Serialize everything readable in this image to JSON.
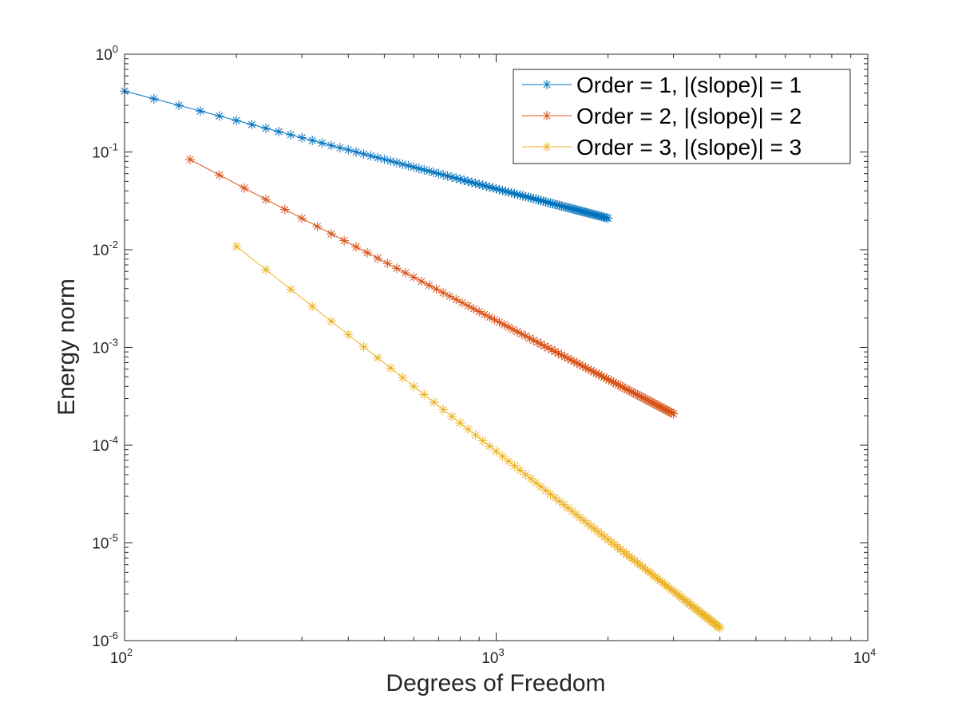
{
  "chart_data": {
    "type": "line",
    "xlabel": "Degrees of Freedom",
    "ylabel": "Energy norm",
    "xscale": "log",
    "yscale": "log",
    "xlim": [
      100,
      10000
    ],
    "ylim": [
      1e-06,
      1
    ],
    "grid": false,
    "legend_position": "top-right",
    "x_ticks": [
      {
        "base": "10",
        "exp": "2",
        "value": 100
      },
      {
        "base": "10",
        "exp": "3",
        "value": 1000
      },
      {
        "base": "10",
        "exp": "4",
        "value": 10000
      }
    ],
    "y_ticks": [
      {
        "base": "10",
        "exp": "-6",
        "value": 1e-06
      },
      {
        "base": "10",
        "exp": "-5",
        "value": 1e-05
      },
      {
        "base": "10",
        "exp": "-4",
        "value": 0.0001
      },
      {
        "base": "10",
        "exp": "-3",
        "value": 0.001
      },
      {
        "base": "10",
        "exp": "-2",
        "value": 0.01
      },
      {
        "base": "10",
        "exp": "-1",
        "value": 0.1
      },
      {
        "base": "10",
        "exp": "0",
        "value": 1
      }
    ],
    "series": [
      {
        "name": "Order = 1, |(slope)| = 1",
        "color": "#0072bd",
        "marker": "asterisk",
        "x": [
          100,
          120,
          140,
          160,
          180,
          200,
          220,
          240,
          260,
          280,
          300,
          320,
          340,
          360,
          380,
          400,
          420,
          440,
          460,
          480,
          500,
          520,
          540,
          560,
          580,
          600,
          620,
          640,
          660,
          680,
          700,
          720,
          740,
          760,
          780,
          800,
          820,
          840,
          860,
          880,
          900,
          920,
          940,
          960,
          980,
          1000,
          1020,
          1040,
          1060,
          1080,
          1100,
          1120,
          1140,
          1160,
          1180,
          1200,
          1220,
          1240,
          1260,
          1280,
          1300,
          1320,
          1340,
          1360,
          1380,
          1400,
          1420,
          1440,
          1460,
          1480,
          1500,
          1520,
          1540,
          1560,
          1580,
          1600,
          1620,
          1640,
          1660,
          1680,
          1700,
          1720,
          1740,
          1760,
          1780,
          1800,
          1820,
          1840,
          1860,
          1880,
          1900,
          1920,
          1940,
          1960,
          1980,
          2000
        ],
        "y": [
          0.42,
          0.35,
          0.3,
          0.2625,
          0.2333,
          0.21,
          0.1909,
          0.175,
          0.1615,
          0.15,
          0.14,
          0.1313,
          0.1235,
          0.1167,
          0.1105,
          0.105,
          0.1,
          0.09545,
          0.0913,
          0.0875,
          0.084,
          0.08077,
          0.07778,
          0.075,
          0.07241,
          0.07,
          0.06774,
          0.06563,
          0.06364,
          0.06176,
          0.06,
          0.05833,
          0.05676,
          0.05526,
          0.05385,
          0.0525,
          0.05122,
          0.05,
          0.04884,
          0.04773,
          0.04667,
          0.04565,
          0.04468,
          0.04375,
          0.04286,
          0.042,
          0.04118,
          0.04038,
          0.03962,
          0.03889,
          0.03818,
          0.0375,
          0.03684,
          0.03621,
          0.03559,
          0.035,
          0.03443,
          0.03387,
          0.03333,
          0.03281,
          0.03231,
          0.03182,
          0.03134,
          0.03088,
          0.03043,
          0.03,
          0.02958,
          0.02917,
          0.02877,
          0.02838,
          0.028,
          0.02763,
          0.02727,
          0.02692,
          0.02658,
          0.02625,
          0.02593,
          0.02561,
          0.0253,
          0.025,
          0.02471,
          0.02442,
          0.02414,
          0.02386,
          0.0236,
          0.02333,
          0.02308,
          0.02283,
          0.02258,
          0.02234,
          0.02211,
          0.02188,
          0.02165,
          0.02143,
          0.02121,
          0.021
        ]
      },
      {
        "name": "Order = 2, |(slope)| = 2",
        "color": "#d95319",
        "marker": "asterisk",
        "x": [
          150,
          180,
          210,
          240,
          270,
          300,
          330,
          360,
          390,
          420,
          450,
          480,
          510,
          540,
          570,
          600,
          630,
          660,
          690,
          720,
          750,
          780,
          810,
          840,
          870,
          900,
          930,
          960,
          990,
          1020,
          1050,
          1080,
          1110,
          1140,
          1170,
          1200,
          1230,
          1260,
          1290,
          1320,
          1350,
          1380,
          1410,
          1440,
          1470,
          1500,
          1530,
          1560,
          1590,
          1620,
          1650,
          1680,
          1710,
          1740,
          1770,
          1800,
          1830,
          1860,
          1890,
          1920,
          1950,
          1980,
          2010,
          2040,
          2070,
          2100,
          2130,
          2160,
          2190,
          2220,
          2250,
          2280,
          2310,
          2340,
          2370,
          2400,
          2430,
          2460,
          2490,
          2520,
          2550,
          2580,
          2610,
          2640,
          2670,
          2700,
          2730,
          2760,
          2790,
          2820,
          2850,
          2880,
          2910,
          2940,
          2970,
          3000
        ],
        "y": [
          0.0837,
          0.05813,
          0.04271,
          0.0327,
          0.02584,
          0.02093,
          0.0173,
          0.01453,
          0.01238,
          0.01068,
          0.0093,
          0.008174,
          0.00724,
          0.006458,
          0.005796,
          0.005231,
          0.004745,
          0.004324,
          0.003955,
          0.003633,
          0.003348,
          0.003096,
          0.00287,
          0.002669,
          0.002488,
          0.002325,
          0.002177,
          0.002043,
          0.001921,
          0.00181,
          0.001708,
          0.001615,
          0.001528,
          0.001449,
          0.001375,
          0.001308,
          0.001244,
          0.001186,
          0.001132,
          0.001081,
          0.001033,
          0.0009887,
          0.000947,
          0.0009081,
          0.0008713,
          0.000837,
          0.0008045,
          0.0007738,
          0.0007449,
          0.0007176,
          0.0006917,
          0.0006672,
          0.0006441,
          0.0006221,
          0.0006012,
          0.0005813,
          0.0005624,
          0.0005444,
          0.0005273,
          0.0005109,
          0.0004953,
          0.0004804,
          0.0004662,
          0.0004526,
          0.0004395,
          0.0004271,
          0.0004151,
          0.0004036,
          0.0003926,
          0.0003821,
          0.000372,
          0.0003622,
          0.0003528,
          0.0003438,
          0.0003352,
          0.000327,
          0.0003189,
          0.0003112,
          0.0003037,
          0.0002966,
          0.0002896,
          0.000283,
          0.0002765,
          0.0002702,
          0.0002641,
          0.0002583,
          0.0002527,
          0.0002472,
          0.0002419,
          0.0002367,
          0.0002318,
          0.000227,
          0.0002223,
          0.0002178,
          0.0002135,
          0.0002093
        ]
      },
      {
        "name": "Order = 3, |(slope)| = 3",
        "color": "#edb120",
        "marker": "asterisk",
        "x": [
          200,
          240,
          280,
          320,
          360,
          400,
          440,
          480,
          520,
          560,
          600,
          640,
          680,
          720,
          760,
          800,
          840,
          880,
          920,
          960,
          1000,
          1040,
          1080,
          1120,
          1160,
          1200,
          1240,
          1280,
          1320,
          1360,
          1400,
          1440,
          1480,
          1520,
          1560,
          1600,
          1640,
          1680,
          1720,
          1760,
          1800,
          1840,
          1880,
          1920,
          1960,
          2000,
          2040,
          2080,
          2120,
          2160,
          2200,
          2240,
          2280,
          2320,
          2360,
          2400,
          2440,
          2480,
          2520,
          2560,
          2600,
          2640,
          2680,
          2720,
          2760,
          2800,
          2840,
          2880,
          2920,
          2960,
          3000,
          3040,
          3080,
          3120,
          3160,
          3200,
          3240,
          3280,
          3320,
          3360,
          3400,
          3440,
          3480,
          3520,
          3560,
          3600,
          3640,
          3680,
          3720,
          3760,
          3800,
          3840,
          3880,
          3920,
          3960,
          4000
        ],
        "y": [
          0.0108,
          0.00625,
          0.003936,
          0.002637,
          0.001852,
          0.00135,
          0.001014,
          0.0007813,
          0.0006145,
          0.000492,
          0.0004,
          0.0003296,
          0.0002748,
          0.0002315,
          0.0001968,
          0.0001688,
          0.0001458,
          0.0001268,
          0.000111,
          9.766e-05,
          8.64e-05,
          7.681e-05,
          6.859e-05,
          6.15e-05,
          5.535e-05,
          5e-05,
          4.531e-05,
          4.12e-05,
          3.757e-05,
          3.435e-05,
          3.149e-05,
          2.894e-05,
          2.665e-05,
          2.46e-05,
          2.275e-05,
          2.109e-05,
          1.958e-05,
          1.822e-05,
          1.698e-05,
          1.585e-05,
          1.481e-05,
          1.387e-05,
          1.3e-05,
          1.221e-05,
          1.148e-05,
          1.08e-05,
          1.018e-05,
          9.601e-06,
          9.068e-06,
          8.573e-06,
          8.115e-06,
          7.688e-06,
          7.291e-06,
          6.922e-06,
          6.577e-06,
          6.25e-06,
          5.948e-06,
          5.664e-06,
          5.397e-06,
          5.149e-06,
          4.916e-06,
          4.696e-06,
          4.489e-06,
          4.293e-06,
          4.109e-06,
          3.936e-06,
          3.772e-06,
          3.617e-06,
          3.471e-06,
          3.333e-06,
          3.2e-06,
          3.075e-06,
          2.957e-06,
          2.844e-06,
          2.737e-06,
          2.637e-06,
          2.54e-06,
          2.448e-06,
          2.361e-06,
          2.277e-06,
          2.198e-06,
          2.122e-06,
          2.05e-06,
          1.98e-06,
          1.914e-06,
          1.852e-06,
          1.791e-06,
          1.734e-06,
          1.679e-06,
          1.626e-06,
          1.575e-06,
          1.526e-06,
          1.479e-06,
          1.434e-06,
          1.391e-06,
          1.35e-06
        ]
      }
    ]
  }
}
